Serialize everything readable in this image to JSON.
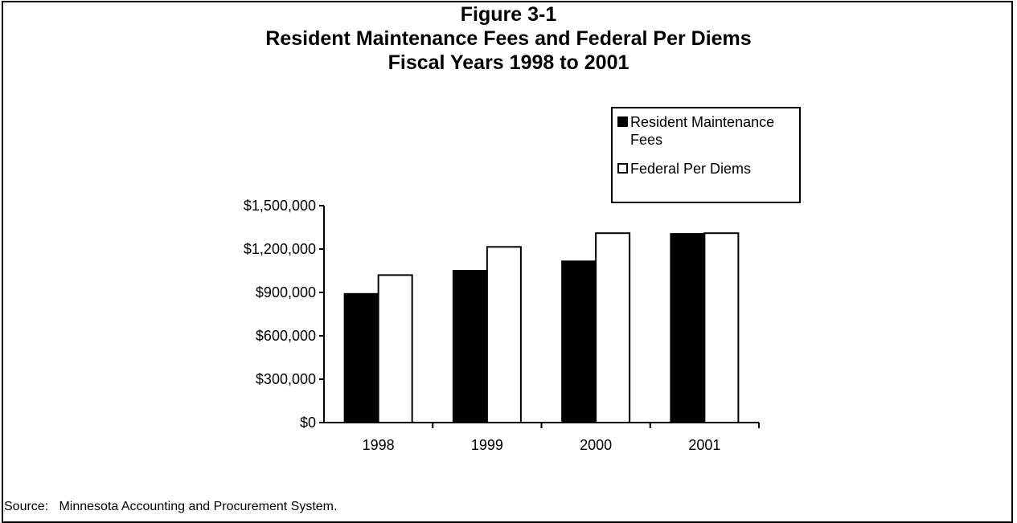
{
  "figure": {
    "title_line1": "Figure 3-1",
    "title_line2": "Resident Maintenance Fees and Federal Per Diems",
    "title_line3": "Fiscal Years 1998 to 2001"
  },
  "source_note": "Source:   Minnesota Accounting and Procurement System.",
  "colors": {
    "series1": "#000000",
    "series2": "#ffffff",
    "axis": "#000000"
  },
  "chart_data": {
    "type": "bar",
    "title": "Resident Maintenance Fees and Federal Per Diems Fiscal Years 1998 to 2001",
    "categories": [
      "1998",
      "1999",
      "2000",
      "2001"
    ],
    "series": [
      {
        "name": "Resident Maintenance Fees",
        "values": [
          890000,
          1050000,
          1115000,
          1305000
        ],
        "color": "#000000"
      },
      {
        "name": "Federal Per Diems",
        "values": [
          1020000,
          1215000,
          1310000,
          1310000
        ],
        "color": "#ffffff"
      }
    ],
    "ylim": [
      0,
      1500000
    ],
    "yticks": [
      0,
      300000,
      600000,
      900000,
      1200000,
      1500000
    ],
    "ytick_labels": [
      "$0",
      "$300,000",
      "$600,000",
      "$900,000",
      "$1,200,000",
      "$1,500,000"
    ],
    "xlabel": "",
    "ylabel": "",
    "grid": false,
    "legend": "top-right"
  }
}
